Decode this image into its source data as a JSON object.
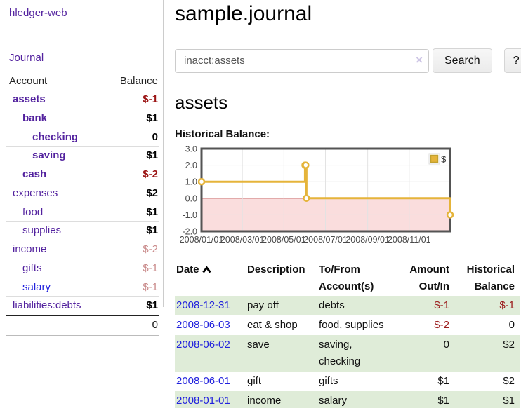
{
  "sidebar": {
    "brand": "hledger-web",
    "journal_link": "Journal",
    "accounts_table": {
      "header_account": "Account",
      "header_balance": "Balance",
      "rows": [
        {
          "name": "assets",
          "balance": "$-1"
        },
        {
          "name": "bank",
          "balance": "$1"
        },
        {
          "name": "checking",
          "balance": "0"
        },
        {
          "name": "saving",
          "balance": "$1"
        },
        {
          "name": "cash",
          "balance": "$-2"
        },
        {
          "name": "expenses",
          "balance": "$2"
        },
        {
          "name": "food",
          "balance": "$1"
        },
        {
          "name": "supplies",
          "balance": "$1"
        },
        {
          "name": "income",
          "balance": "$-2"
        },
        {
          "name": "gifts",
          "balance": "$-1"
        },
        {
          "name": "salary",
          "balance": "$-1"
        },
        {
          "name": "liabilities:debts",
          "balance": "$1"
        }
      ],
      "total": "0"
    }
  },
  "header": {
    "title": "sample.journal"
  },
  "search": {
    "value": "inacct:assets",
    "clear_icon": "×",
    "button_label": "Search",
    "help_label": "?"
  },
  "account_page": {
    "heading": "assets",
    "chart_label": "Historical Balance:"
  },
  "chart_data": {
    "type": "line",
    "title": "Historical Balance",
    "step": true,
    "series": [
      {
        "name": "$",
        "color": "#E5B43A",
        "points": [
          [
            "2008-01-01",
            1
          ],
          [
            "2008-06-01",
            2
          ],
          [
            "2008-06-02",
            2
          ],
          [
            "2008-06-03",
            0
          ],
          [
            "2008-12-31",
            -1
          ]
        ]
      }
    ],
    "x_range": [
      "2008-01-01",
      "2008-12-31"
    ],
    "y_range": [
      -2,
      3
    ],
    "y_ticks": [
      3.0,
      2.0,
      1.0,
      0.0,
      -1.0,
      -2.0
    ],
    "x_ticks": [
      "2008/01/01",
      "2008/03/01",
      "2008/05/01",
      "2008/07/01",
      "2008/09/01",
      "2008/11/01"
    ],
    "legend": {
      "label": "$",
      "position": "top-right"
    },
    "grid": true,
    "grid_color": "#e3e3e3",
    "border_color": "#545454",
    "negative_fill": "#fadddd",
    "zero_line_color": "#991111",
    "tick_label_color": "#4a4a4a"
  },
  "register_table": {
    "headers": {
      "date": "Date",
      "description": "Description",
      "tofrom": "To/From Account(s)",
      "amount": "Amount Out/In",
      "historical": "Historical Balance"
    },
    "rows": [
      {
        "date": "2008-12-31",
        "description": "pay off",
        "tofrom": "debts",
        "amount": "$-1",
        "historical": "$-1"
      },
      {
        "date": "2008-06-03",
        "description": "eat & shop",
        "tofrom": "food, supplies",
        "amount": "$-2",
        "historical": "0"
      },
      {
        "date": "2008-06-02",
        "description": "save",
        "tofrom": "saving, checking",
        "amount": "0",
        "historical": "$2"
      },
      {
        "date": "2008-06-01",
        "description": "gift",
        "tofrom": "gifts",
        "amount": "$1",
        "historical": "$2"
      },
      {
        "date": "2008-01-01",
        "description": "income",
        "tofrom": "salary",
        "amount": "$1",
        "historical": "$1"
      }
    ]
  },
  "colors": {
    "link_purple": "#52219E",
    "link_blue": "#2222DD",
    "negative_red": "#9B1B1B",
    "rosy_negative": "#C98A8A",
    "row_stripe_green": "#DFECD8",
    "chart_line_gold": "#E5B43A"
  }
}
